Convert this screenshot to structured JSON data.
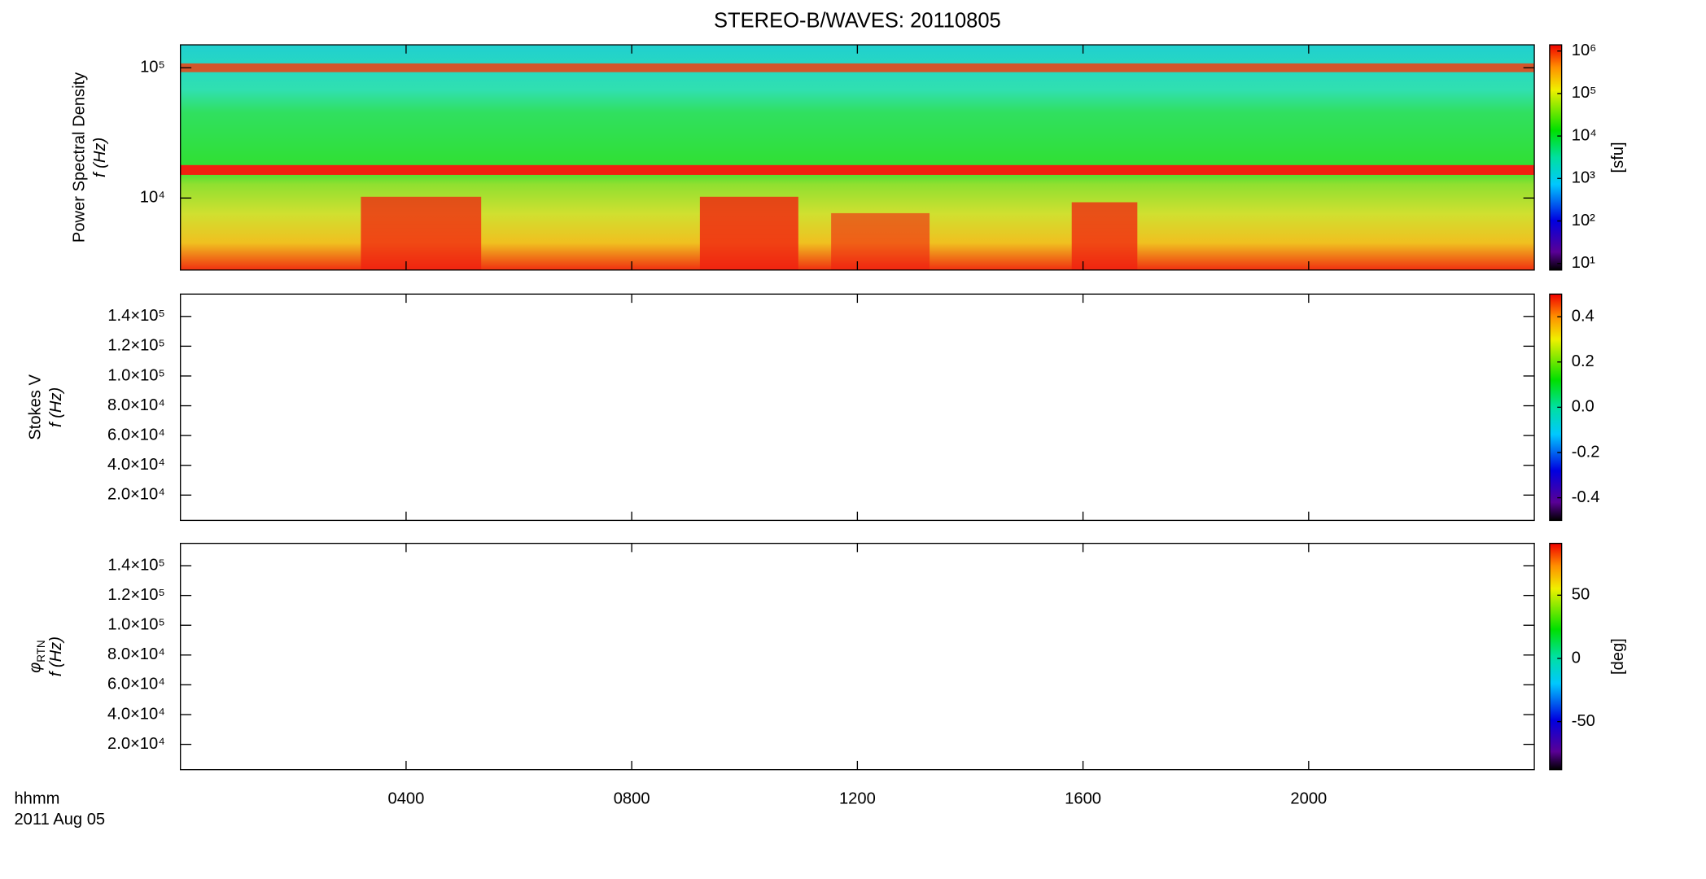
{
  "chart_data": [
    {
      "type": "heatmap",
      "title": "STEREO-B/WAVES: 20110805",
      "ylabel": "Power Spectral Density",
      "ylabel2": "f (Hz)",
      "log": true,
      "ylim": [
        2800,
        150000
      ],
      "yticks": [
        {
          "value": 10000,
          "label": "10⁴"
        },
        {
          "value": 100000,
          "label": "10⁵"
        }
      ],
      "colorbar": {
        "label": "[sfu]",
        "log": true,
        "lim": [
          7,
          1400000
        ],
        "ticks": [
          {
            "value": 10,
            "label": "10¹"
          },
          {
            "value": 100,
            "label": "10²"
          },
          {
            "value": 1000,
            "label": "10³"
          },
          {
            "value": 10000,
            "label": "10⁴"
          },
          {
            "value": 100000,
            "label": "10⁵"
          },
          {
            "value": 1000000,
            "label": "10⁶"
          }
        ]
      }
    },
    {
      "type": "heatmap",
      "ylabel": "Stokes V",
      "ylabel2": "f (Hz)",
      "log": false,
      "ylim": [
        3000,
        155000
      ],
      "yticks": [
        {
          "value": 20000,
          "label": "2.0×10⁴"
        },
        {
          "value": 40000,
          "label": "4.0×10⁴"
        },
        {
          "value": 60000,
          "label": "6.0×10⁴"
        },
        {
          "value": 80000,
          "label": "8.0×10⁴"
        },
        {
          "value": 100000,
          "label": "1.0×10⁵"
        },
        {
          "value": 120000,
          "label": "1.2×10⁵"
        },
        {
          "value": 140000,
          "label": "1.4×10⁵"
        }
      ],
      "colorbar": {
        "log": false,
        "lim": [
          -0.5,
          0.5
        ],
        "ticks": [
          {
            "value": -0.4,
            "label": "-0.4"
          },
          {
            "value": -0.2,
            "label": "-0.2"
          },
          {
            "value": 0,
            "label": "0.0"
          },
          {
            "value": 0.2,
            "label": "0.2"
          },
          {
            "value": 0.4,
            "label": "0.4"
          }
        ]
      }
    },
    {
      "type": "heatmap",
      "ylabel_symbol": "φ",
      "ylabel_subscript": "RTN",
      "ylabel2": "f (Hz)",
      "log": false,
      "ylim": [
        3000,
        155000
      ],
      "yticks": [
        {
          "value": 20000,
          "label": "2.0×10⁴"
        },
        {
          "value": 40000,
          "label": "4.0×10⁴"
        },
        {
          "value": 60000,
          "label": "6.0×10⁴"
        },
        {
          "value": 80000,
          "label": "8.0×10⁴"
        },
        {
          "value": 100000,
          "label": "1.0×10⁵"
        },
        {
          "value": 120000,
          "label": "1.2×10⁵"
        },
        {
          "value": 140000,
          "label": "1.4×10⁵"
        }
      ],
      "colorbar": {
        "label": "[deg]",
        "log": false,
        "lim": [
          -88,
          91
        ],
        "ticks": [
          -50,
          0,
          50
        ]
      },
      "xlabel": "hhmm",
      "date": "2011 Aug 05",
      "xlim": [
        0,
        24
      ],
      "xticks": [
        {
          "value": 4,
          "label": "0400"
        },
        {
          "value": 8,
          "label": "0800"
        },
        {
          "value": 12,
          "label": "1200"
        },
        {
          "value": 16,
          "label": "1600"
        },
        {
          "value": 20,
          "label": "2000"
        }
      ]
    }
  ]
}
